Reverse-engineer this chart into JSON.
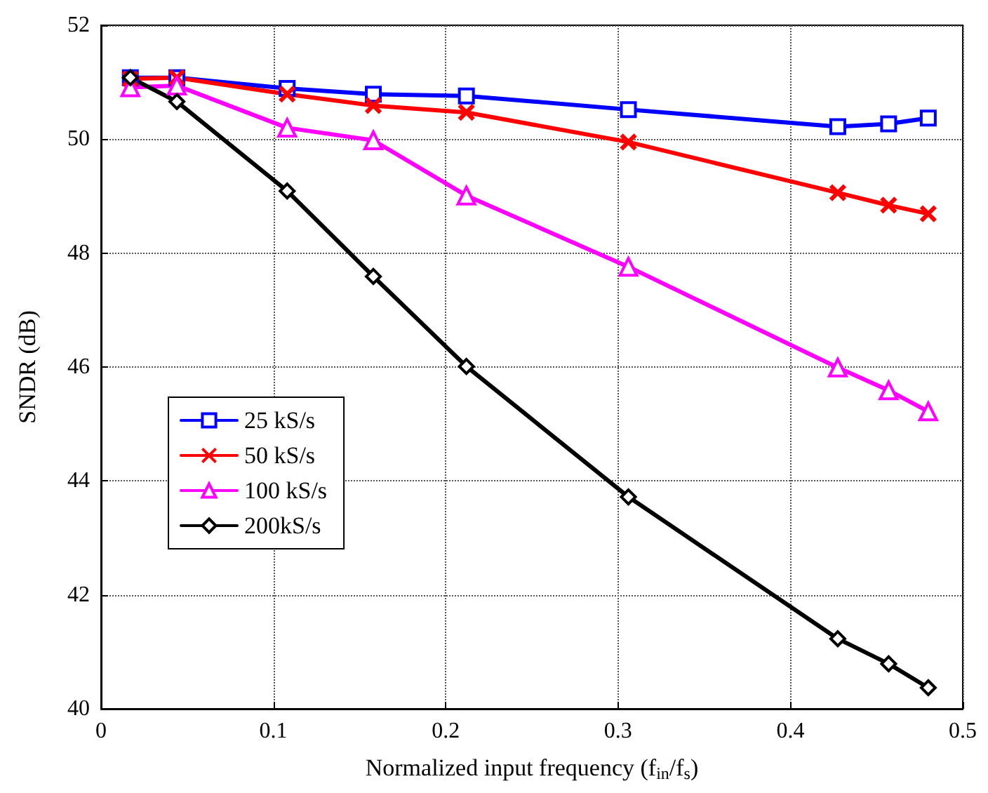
{
  "chart_data": {
    "type": "line",
    "xlabel": "Normalized input frequency (f$_{in}$/f$_{s}$)",
    "ylabel": "SNDR (dB)",
    "x": [
      0.017,
      0.044,
      0.108,
      0.158,
      0.212,
      0.306,
      0.4275,
      0.457,
      0.48
    ],
    "xlim": [
      0,
      0.5
    ],
    "xticks": [
      0,
      0.1,
      0.2,
      0.3,
      0.4,
      0.5
    ],
    "ylim": [
      40,
      52
    ],
    "yticks": [
      40,
      42,
      44,
      46,
      48,
      50,
      52
    ],
    "grid": true,
    "legend": "center left",
    "series": [
      {
        "name": "25 kS/s",
        "color": "#0000ff",
        "marker": "square",
        "values": [
          51.08,
          51.08,
          50.89,
          50.79,
          50.76,
          50.52,
          50.22,
          50.27,
          50.37
        ]
      },
      {
        "name": "50 kS/s",
        "color": "#ff0000",
        "marker": "cross",
        "values": [
          51.06,
          51.08,
          50.79,
          50.59,
          50.47,
          49.95,
          49.06,
          48.84,
          48.69
        ]
      },
      {
        "name": "100 kS/s",
        "color": "#ff00ff",
        "marker": "triangle",
        "values": [
          50.91,
          50.94,
          50.2,
          49.98,
          49.01,
          47.76,
          45.99,
          45.59,
          45.22
        ]
      },
      {
        "name": "200kS/s",
        "color": "#000000",
        "marker": "diamond",
        "values": [
          51.08,
          50.66,
          49.09,
          47.59,
          46.01,
          43.72,
          41.23,
          40.79,
          40.37
        ]
      }
    ]
  }
}
